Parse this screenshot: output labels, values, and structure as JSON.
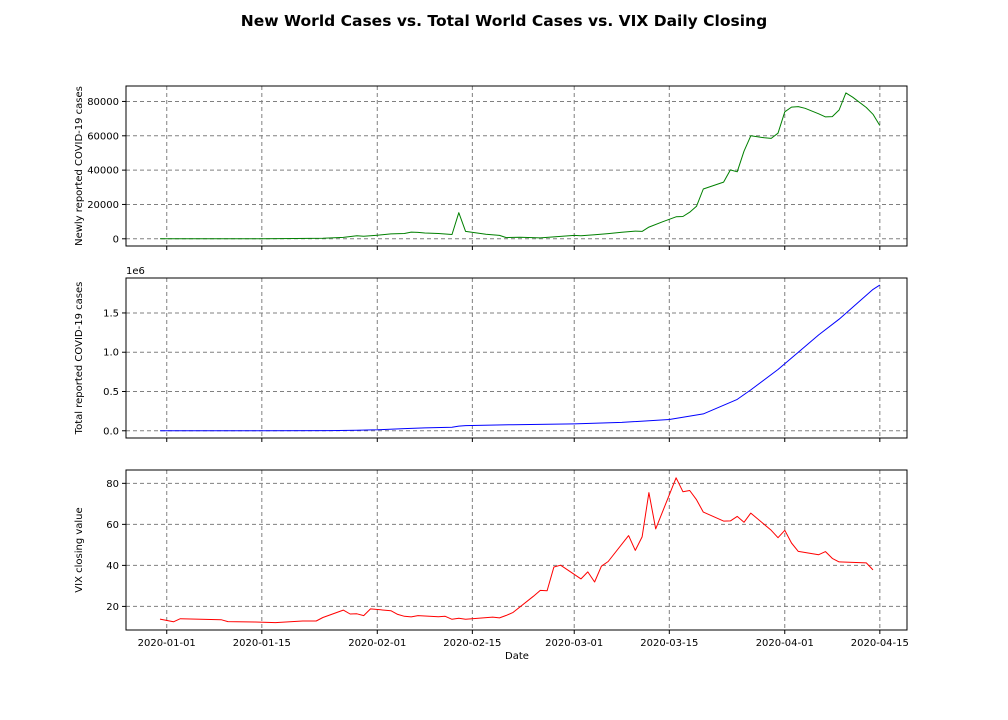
{
  "figure": {
    "suptitle": "New World Cases vs. Total World Cases vs. VIX Daily Closing",
    "shared_x_label": "Date",
    "x_tick_labels": [
      "2020-01-01",
      "2020-01-15",
      "2020-02-01",
      "2020-02-15",
      "2020-03-01",
      "2020-03-15",
      "2020-04-01",
      "2020-04-15"
    ]
  },
  "chart_data": [
    {
      "type": "line",
      "title": "",
      "xlabel": "",
      "ylabel": "Newly reported COVID-19 cases",
      "xlim": [
        "2019-12-26",
        "2020-04-19"
      ],
      "ylim": [
        -4200,
        89000
      ],
      "y_ticks": [
        0,
        20000,
        40000,
        60000,
        80000
      ],
      "y_tick_labels": [
        "0",
        "20000",
        "40000",
        "60000",
        "80000"
      ],
      "y_offset_label": "",
      "grid": true,
      "color": "#008000",
      "series": [
        {
          "points": [
            [
              "2019-12-31",
              27
            ],
            [
              "2020-01-03",
              17
            ],
            [
              "2020-01-06",
              15
            ],
            [
              "2020-01-10",
              20
            ],
            [
              "2020-01-15",
              4
            ],
            [
              "2020-01-20",
              140
            ],
            [
              "2020-01-24",
              259
            ],
            [
              "2020-01-27",
              787
            ],
            [
              "2020-01-29",
              1753
            ],
            [
              "2020-01-30",
              1466
            ],
            [
              "2020-02-01",
              2100
            ],
            [
              "2020-02-03",
              2829
            ],
            [
              "2020-02-05",
              3100
            ],
            [
              "2020-02-06",
              3900
            ],
            [
              "2020-02-07",
              3700
            ],
            [
              "2020-02-08",
              3350
            ],
            [
              "2020-02-10",
              3100
            ],
            [
              "2020-02-12",
              2500
            ],
            [
              "2020-02-13",
              15200
            ],
            [
              "2020-02-14",
              4300
            ],
            [
              "2020-02-17",
              2700
            ],
            [
              "2020-02-19",
              2000
            ],
            [
              "2020-02-20",
              700
            ],
            [
              "2020-02-22",
              900
            ],
            [
              "2020-02-25",
              500
            ],
            [
              "2020-02-28",
              1400
            ],
            [
              "2020-03-01",
              2000
            ],
            [
              "2020-03-02",
              1800
            ],
            [
              "2020-03-04",
              2300
            ],
            [
              "2020-03-06",
              3000
            ],
            [
              "2020-03-08",
              3800
            ],
            [
              "2020-03-10",
              4500
            ],
            [
              "2020-03-11",
              4300
            ],
            [
              "2020-03-12",
              6800
            ],
            [
              "2020-03-14",
              9900
            ],
            [
              "2020-03-16",
              12800
            ],
            [
              "2020-03-17",
              13000
            ],
            [
              "2020-03-18",
              15500
            ],
            [
              "2020-03-19",
              18900
            ],
            [
              "2020-03-20",
              29000
            ],
            [
              "2020-03-23",
              33000
            ],
            [
              "2020-03-24",
              40100
            ],
            [
              "2020-03-25",
              39000
            ],
            [
              "2020-03-26",
              51000
            ],
            [
              "2020-03-27",
              60000
            ],
            [
              "2020-03-29",
              58800
            ],
            [
              "2020-03-30",
              58500
            ],
            [
              "2020-03-31",
              61500
            ],
            [
              "2020-04-01",
              74000
            ],
            [
              "2020-04-02",
              76700
            ],
            [
              "2020-04-03",
              77000
            ],
            [
              "2020-04-04",
              76000
            ],
            [
              "2020-04-06",
              72800
            ],
            [
              "2020-04-07",
              71000
            ],
            [
              "2020-04-08",
              71200
            ],
            [
              "2020-04-09",
              75000
            ],
            [
              "2020-04-10",
              85000
            ],
            [
              "2020-04-11",
              82500
            ],
            [
              "2020-04-13",
              76500
            ],
            [
              "2020-04-14",
              72500
            ],
            [
              "2020-04-15",
              66000
            ]
          ]
        }
      ]
    },
    {
      "type": "line",
      "title": "",
      "xlabel": "",
      "ylabel": "Total reported COVID-19 cases",
      "xlim": [
        "2019-12-26",
        "2020-04-19"
      ],
      "ylim": [
        -92000,
        1945000
      ],
      "y_ticks": [
        0,
        500000,
        1000000,
        1500000
      ],
      "y_tick_labels": [
        "0.0",
        "0.5",
        "1.0",
        "1.5"
      ],
      "y_offset_label": "1e6",
      "grid": true,
      "color": "#0000ff",
      "series": [
        {
          "points": [
            [
              "2019-12-31",
              27
            ],
            [
              "2020-01-15",
              400
            ],
            [
              "2020-01-25",
              2000
            ],
            [
              "2020-01-29",
              7700
            ],
            [
              "2020-02-01",
              12000
            ],
            [
              "2020-02-05",
              28000
            ],
            [
              "2020-02-08",
              37000
            ],
            [
              "2020-02-12",
              45000
            ],
            [
              "2020-02-13",
              60000
            ],
            [
              "2020-02-14",
              66000
            ],
            [
              "2020-02-21",
              77000
            ],
            [
              "2020-03-01",
              88000
            ],
            [
              "2020-03-08",
              106000
            ],
            [
              "2020-03-15",
              143000
            ],
            [
              "2020-03-20",
              215000
            ],
            [
              "2020-03-25",
              400000
            ],
            [
              "2020-03-27",
              520000
            ],
            [
              "2020-03-31",
              780000
            ],
            [
              "2020-04-03",
              1000000
            ],
            [
              "2020-04-06",
              1220000
            ],
            [
              "2020-04-09",
              1420000
            ],
            [
              "2020-04-12",
              1650000
            ],
            [
              "2020-04-14",
              1800000
            ],
            [
              "2020-04-15",
              1855000
            ]
          ]
        }
      ]
    },
    {
      "type": "line",
      "title": "",
      "xlabel": "Date",
      "ylabel": "VIX closing value",
      "xlim": [
        "2019-12-26",
        "2020-04-19"
      ],
      "ylim": [
        8.5,
        86.5
      ],
      "y_ticks": [
        20,
        40,
        60,
        80
      ],
      "y_tick_labels": [
        "20",
        "40",
        "60",
        "80"
      ],
      "y_offset_label": "",
      "grid": true,
      "color": "#ff0000",
      "series": [
        {
          "points": [
            [
              "2019-12-31",
              13.8
            ],
            [
              "2020-01-02",
              12.5
            ],
            [
              "2020-01-03",
              14.0
            ],
            [
              "2020-01-09",
              13.5
            ],
            [
              "2020-01-10",
              12.6
            ],
            [
              "2020-01-14",
              12.4
            ],
            [
              "2020-01-17",
              12.1
            ],
            [
              "2020-01-21",
              12.9
            ],
            [
              "2020-01-22",
              12.9
            ],
            [
              "2020-01-23",
              12.9
            ],
            [
              "2020-01-24",
              14.6
            ],
            [
              "2020-01-27",
              18.2
            ],
            [
              "2020-01-28",
              16.3
            ],
            [
              "2020-01-29",
              16.4
            ],
            [
              "2020-01-30",
              15.5
            ],
            [
              "2020-01-31",
              18.8
            ],
            [
              "2020-02-03",
              17.9
            ],
            [
              "2020-02-04",
              16.1
            ],
            [
              "2020-02-05",
              15.2
            ],
            [
              "2020-02-06",
              14.9
            ],
            [
              "2020-02-07",
              15.5
            ],
            [
              "2020-02-10",
              15.0
            ],
            [
              "2020-02-11",
              15.2
            ],
            [
              "2020-02-12",
              13.7
            ],
            [
              "2020-02-13",
              14.2
            ],
            [
              "2020-02-14",
              13.7
            ],
            [
              "2020-02-18",
              14.8
            ],
            [
              "2020-02-19",
              14.4
            ],
            [
              "2020-02-20",
              15.6
            ],
            [
              "2020-02-21",
              17.1
            ],
            [
              "2020-02-24",
              25.0
            ],
            [
              "2020-02-25",
              27.8
            ],
            [
              "2020-02-26",
              27.6
            ],
            [
              "2020-02-27",
              39.2
            ],
            [
              "2020-02-28",
              40.1
            ],
            [
              "2020-03-02",
              33.4
            ],
            [
              "2020-03-03",
              36.8
            ],
            [
              "2020-03-04",
              31.9
            ],
            [
              "2020-03-05",
              39.6
            ],
            [
              "2020-03-06",
              41.9
            ],
            [
              "2020-03-09",
              54.5
            ],
            [
              "2020-03-10",
              47.3
            ],
            [
              "2020-03-11",
              53.9
            ],
            [
              "2020-03-12",
              75.5
            ],
            [
              "2020-03-13",
              57.8
            ],
            [
              "2020-03-16",
              82.7
            ],
            [
              "2020-03-17",
              75.9
            ],
            [
              "2020-03-18",
              76.5
            ],
            [
              "2020-03-19",
              72.0
            ],
            [
              "2020-03-20",
              66.0
            ],
            [
              "2020-03-23",
              61.6
            ],
            [
              "2020-03-24",
              61.7
            ],
            [
              "2020-03-25",
              63.9
            ],
            [
              "2020-03-26",
              61.0
            ],
            [
              "2020-03-27",
              65.5
            ],
            [
              "2020-03-30",
              57.1
            ],
            [
              "2020-03-31",
              53.5
            ],
            [
              "2020-04-01",
              57.1
            ],
            [
              "2020-04-02",
              50.9
            ],
            [
              "2020-04-03",
              46.8
            ],
            [
              "2020-04-06",
              45.2
            ],
            [
              "2020-04-07",
              46.7
            ],
            [
              "2020-04-08",
              43.4
            ],
            [
              "2020-04-09",
              41.7
            ],
            [
              "2020-04-13",
              41.2
            ],
            [
              "2020-04-14",
              37.8
            ]
          ]
        }
      ]
    }
  ]
}
